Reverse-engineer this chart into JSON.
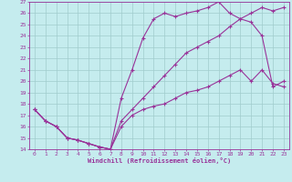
{
  "xlabel": "Windchill (Refroidissement éolien,°C)",
  "xlim": [
    -0.5,
    23.5
  ],
  "ylim": [
    14,
    27
  ],
  "xticks": [
    0,
    1,
    2,
    3,
    4,
    5,
    6,
    7,
    8,
    9,
    10,
    11,
    12,
    13,
    14,
    15,
    16,
    17,
    18,
    19,
    20,
    21,
    22,
    23
  ],
  "yticks": [
    14,
    15,
    16,
    17,
    18,
    19,
    20,
    21,
    22,
    23,
    24,
    25,
    26,
    27
  ],
  "bg_color": "#c5ecee",
  "line_color": "#993399",
  "grid_color": "#a0cccc",
  "line1_x": [
    0,
    1,
    2,
    3,
    4,
    5,
    6,
    7,
    8,
    9,
    10,
    11,
    12,
    13,
    14,
    15,
    16,
    17,
    18,
    19,
    20,
    21,
    22,
    23
  ],
  "line1_y": [
    17.5,
    16.5,
    16.0,
    15.0,
    14.8,
    14.5,
    14.2,
    14.0,
    18.5,
    21.0,
    23.8,
    25.5,
    26.0,
    25.7,
    26.0,
    26.2,
    26.5,
    27.0,
    26.0,
    25.5,
    25.2,
    24.0,
    19.5,
    20.0
  ],
  "line2_x": [
    0,
    1,
    2,
    3,
    4,
    5,
    6,
    7,
    8,
    9,
    10,
    11,
    12,
    13,
    14,
    15,
    16,
    17,
    18,
    19,
    20,
    21,
    22,
    23
  ],
  "line2_y": [
    17.5,
    16.5,
    16.0,
    15.0,
    14.8,
    14.5,
    14.2,
    14.0,
    16.5,
    17.5,
    18.5,
    19.5,
    20.5,
    21.5,
    22.5,
    23.0,
    23.5,
    24.0,
    24.8,
    25.5,
    26.0,
    26.5,
    26.2,
    26.5
  ],
  "line3_x": [
    0,
    1,
    2,
    3,
    4,
    5,
    6,
    7,
    8,
    9,
    10,
    11,
    12,
    13,
    14,
    15,
    16,
    17,
    18,
    19,
    20,
    21,
    22,
    23
  ],
  "line3_y": [
    17.5,
    16.5,
    16.0,
    15.0,
    14.8,
    14.5,
    14.2,
    14.0,
    16.0,
    17.0,
    17.5,
    17.8,
    18.0,
    18.5,
    19.0,
    19.2,
    19.5,
    20.0,
    20.5,
    21.0,
    20.0,
    21.0,
    19.8,
    19.5
  ]
}
